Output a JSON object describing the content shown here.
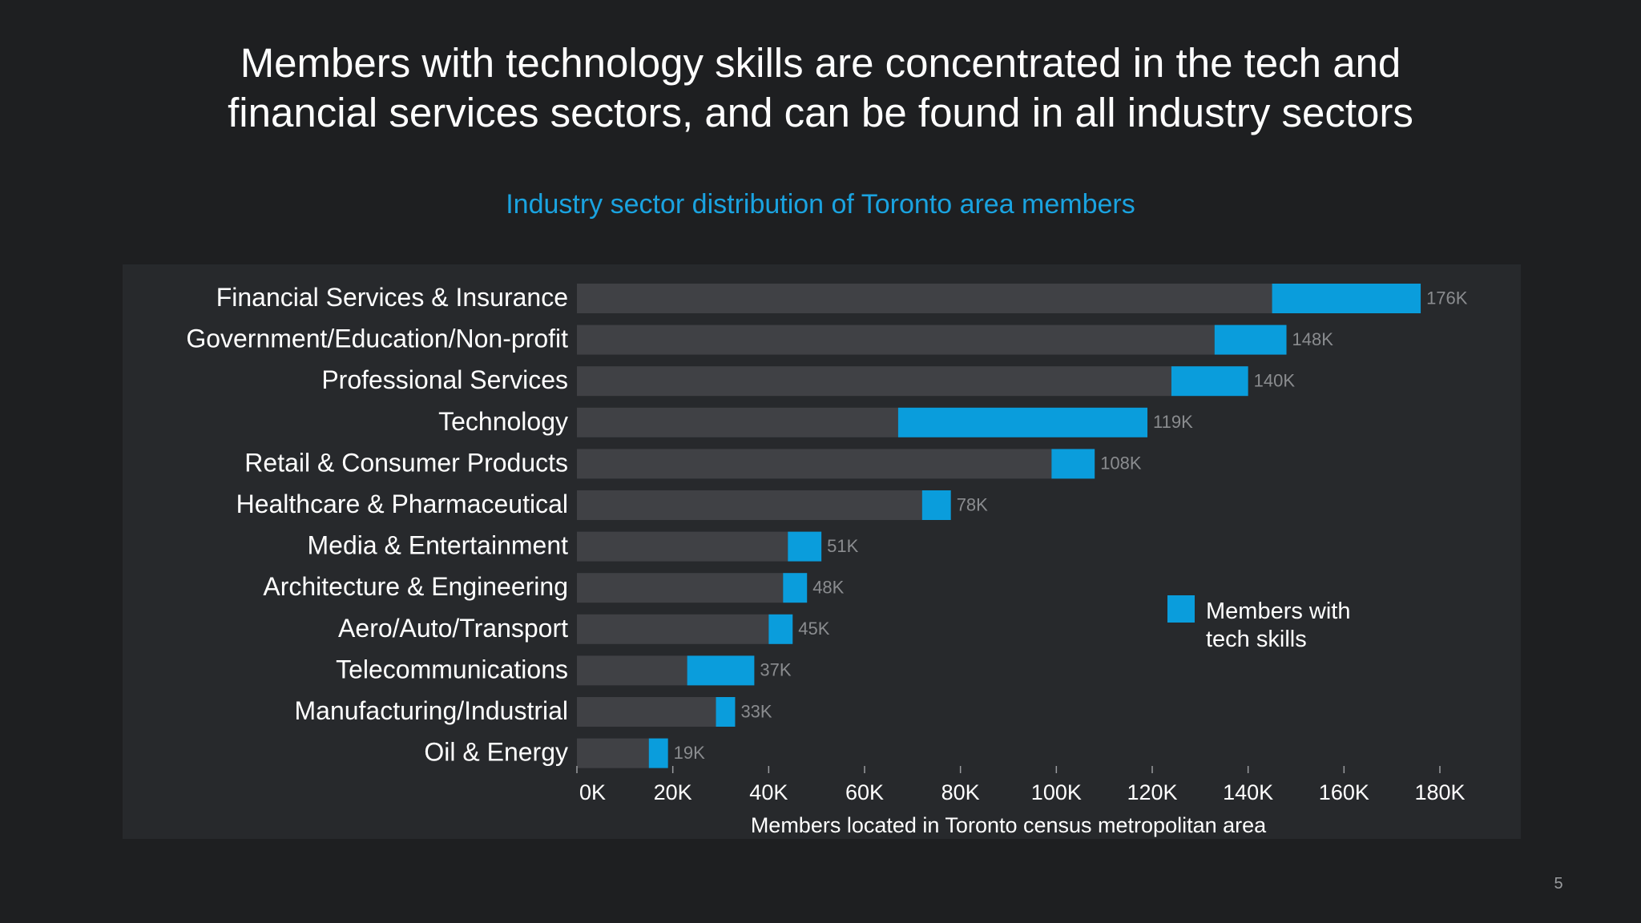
{
  "slide": {
    "title_line1": "Members with technology skills are concentrated in the tech and",
    "title_line2": "financial services sectors, and can be found in all industry sectors",
    "page_number": "5"
  },
  "colors": {
    "background": "#1e1f21",
    "panel": "#27292c",
    "total_bar": "#404145",
    "tech_bar": "#0a9ddc",
    "subtitle": "#1aa3e0",
    "category_label": "#ffffff",
    "value_label": "#8a8c8f",
    "axis_text": "#ffffff"
  },
  "chart_data": {
    "type": "bar",
    "orientation": "horizontal",
    "stacked": true,
    "title": "Industry sector distribution of Toronto area members",
    "xlabel": "Members located in Toronto census metropolitan area",
    "ylabel": "",
    "xlim": [
      0,
      180000
    ],
    "xticks": [
      0,
      20000,
      40000,
      60000,
      80000,
      100000,
      120000,
      140000,
      160000,
      180000
    ],
    "xtick_labels": [
      "0K",
      "20K",
      "40K",
      "60K",
      "80K",
      "100K",
      "120K",
      "140K",
      "160K",
      "180K"
    ],
    "grid": false,
    "legend_position": "right",
    "legend_label_line1": "Members with",
    "legend_label_line2": "tech skills",
    "categories": [
      "Financial Services & Insurance",
      "Government/Education/Non-profit",
      "Professional Services",
      "Technology",
      "Retail & Consumer Products",
      "Healthcare & Pharmaceutical",
      "Media & Entertainment",
      "Architecture & Engineering",
      "Aero/Auto/Transport",
      "Telecommunications",
      "Manufacturing/Industrial",
      "Oil & Energy"
    ],
    "totals": [
      176000,
      148000,
      140000,
      119000,
      108000,
      78000,
      51000,
      48000,
      45000,
      37000,
      33000,
      19000
    ],
    "total_labels": [
      "176K",
      "148K",
      "140K",
      "119K",
      "108K",
      "78K",
      "51K",
      "48K",
      "45K",
      "37K",
      "33K",
      "19K"
    ],
    "series": [
      {
        "name": "",
        "values": [
          145000,
          133000,
          124000,
          67000,
          99000,
          72000,
          44000,
          43000,
          40000,
          23000,
          29000,
          15000
        ]
      },
      {
        "name": "Members with tech skills",
        "values": [
          31000,
          15000,
          16000,
          52000,
          9000,
          6000,
          7000,
          5000,
          5000,
          14000,
          4000,
          4000
        ]
      }
    ]
  }
}
